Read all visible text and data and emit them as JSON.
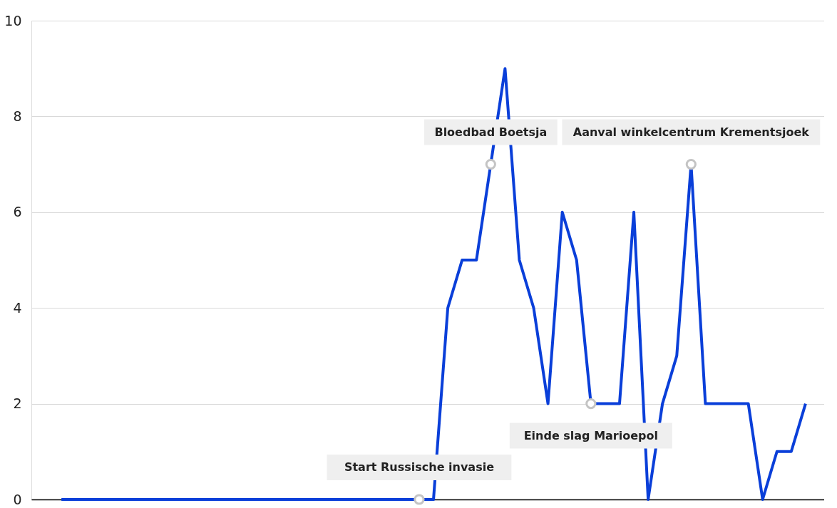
{
  "chart_data": {
    "type": "line",
    "categories": [
      null,
      null,
      null,
      null,
      null,
      null,
      null,
      null,
      null,
      null,
      null,
      null,
      null,
      null,
      null,
      null,
      null,
      null,
      null,
      null,
      null,
      null,
      null,
      null,
      null,
      null,
      null,
      null,
      null,
      null,
      null,
      null,
      null,
      null,
      null,
      null,
      null,
      null,
      null,
      null,
      null,
      null,
      null,
      null,
      null,
      null,
      null,
      null,
      null,
      null,
      null,
      null,
      null
    ],
    "series": [
      {
        "color": "#0a3fd9",
        "values": [
          0,
          0,
          0,
          0,
          0,
          0,
          0,
          0,
          0,
          0,
          0,
          0,
          0,
          0,
          0,
          0,
          0,
          0,
          0,
          0,
          0,
          0,
          0,
          0,
          0,
          0,
          0,
          4,
          5,
          5,
          7,
          9,
          5,
          4,
          2,
          6,
          5,
          2,
          2,
          2,
          6,
          0,
          2,
          3,
          7,
          2,
          2,
          2,
          2,
          0,
          1,
          1,
          2
        ]
      }
    ],
    "ylim": [
      0,
      10
    ],
    "yticks": [
      0,
      2,
      4,
      6,
      8,
      10
    ],
    "grid": "y",
    "tick_labels": "y",
    "marker": "none",
    "line_style": "solid",
    "annotations": [
      {
        "text": "Start Russische invasie",
        "y": 0
      },
      {
        "text": "Bloedbad Boetsja",
        "y": 7
      },
      {
        "text": "Einde slag Marioepol",
        "y": 2
      },
      {
        "text": "Aanval winkelcentrum Krementsjoek",
        "y": 7
      }
    ]
  }
}
